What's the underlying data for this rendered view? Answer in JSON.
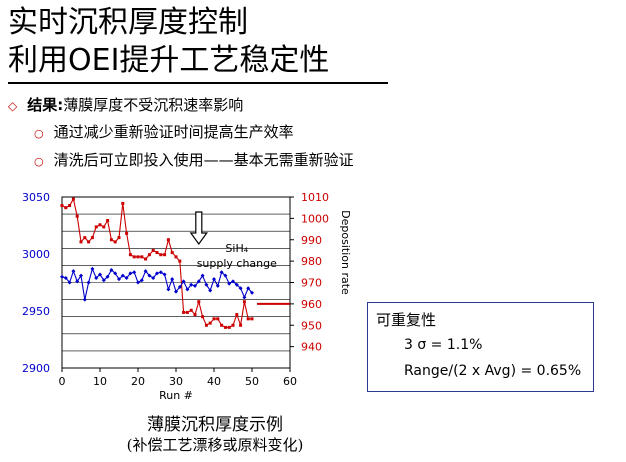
{
  "title": {
    "line1": "实时沉积厚度控制",
    "line2": "利用OEI提升工艺稳定性"
  },
  "bullets": {
    "main_head": "结果:",
    "main_text": "薄膜厚度不受沉积速率影响",
    "sub1": "通过减少重新验证时间提高生产效率",
    "sub2": "清洗后可立即投入使用——基本无需重新验证"
  },
  "box": {
    "heading": "可重复性",
    "line1": "3 σ = 1.1%",
    "line2": "Range/(2 x Avg) = 0.65%"
  },
  "caption": {
    "line1": "薄膜沉积厚度示例",
    "line2": "(补偿工艺漂移或原料变化)"
  },
  "chart_data": {
    "type": "line",
    "xlabel": "Run #",
    "y2label": "Deposition rate",
    "annotation": "SiH₄ supply change",
    "annotation_lines": [
      "SiH₄",
      "supply change"
    ],
    "xlim": [
      0,
      60
    ],
    "xticks": [
      0,
      10,
      20,
      30,
      40,
      50,
      60
    ],
    "grid": true,
    "colors": {
      "deposition": "#cc0000",
      "thickness": "#0000cc"
    },
    "left_axis": {
      "ylim": [
        2900,
        3050
      ],
      "ticks": [
        2900,
        2950,
        3000,
        3050
      ]
    },
    "right_axis": {
      "ylim": [
        930,
        1010
      ],
      "ticks": [
        940,
        950,
        960,
        970,
        980,
        990,
        1000,
        1010
      ]
    },
    "series": [
      {
        "axis": "right",
        "x": [
          0,
          1,
          2,
          3,
          4,
          5,
          6,
          7,
          8,
          9,
          10,
          11,
          12,
          13,
          14,
          15,
          16,
          17,
          18,
          19,
          20,
          21,
          22,
          23,
          24,
          25,
          26,
          27,
          28,
          29,
          30,
          31,
          32,
          33,
          34,
          35,
          36,
          37,
          38,
          39,
          40,
          41,
          42,
          43,
          44,
          45,
          46,
          47,
          48,
          49,
          50
        ],
        "values": [
          1006,
          1005,
          1006,
          1009,
          1001,
          989,
          991,
          989,
          991,
          996,
          997,
          996,
          999,
          990,
          989,
          991,
          1007,
          993,
          983,
          982,
          982,
          982,
          981,
          983,
          985,
          984,
          983,
          983,
          990,
          984,
          982,
          980,
          956,
          956,
          957,
          955,
          961,
          954,
          950,
          951,
          953,
          953,
          950,
          949,
          949,
          950,
          955,
          950,
          961,
          953,
          953
        ]
      },
      {
        "axis": "left",
        "x": [
          0,
          1,
          2,
          3,
          4,
          5,
          6,
          7,
          8,
          9,
          10,
          11,
          12,
          13,
          14,
          15,
          16,
          17,
          18,
          19,
          20,
          21,
          22,
          23,
          24,
          25,
          26,
          27,
          28,
          29,
          30,
          31,
          32,
          33,
          34,
          35,
          36,
          37,
          38,
          39,
          40,
          41,
          42,
          43,
          44,
          45,
          46,
          47,
          48,
          49,
          50
        ],
        "values": [
          2980,
          2979,
          2975,
          2985,
          2976,
          2981,
          2960,
          2975,
          2987,
          2979,
          2982,
          2977,
          2980,
          2986,
          2983,
          2978,
          2981,
          2979,
          2983,
          2984,
          2975,
          2977,
          2985,
          2981,
          2979,
          2983,
          2984,
          2982,
          2969,
          2978,
          2967,
          2971,
          2976,
          2969,
          2973,
          2972,
          2976,
          2981,
          2973,
          2968,
          2978,
          2972,
          2984,
          2981,
          2974,
          2976,
          2973,
          2970,
          2962,
          2970,
          2966
        ]
      }
    ],
    "marker_lines": [
      {
        "axis": "right",
        "x": [
          50,
          60
        ],
        "values": [
          960,
          960
        ]
      }
    ]
  }
}
